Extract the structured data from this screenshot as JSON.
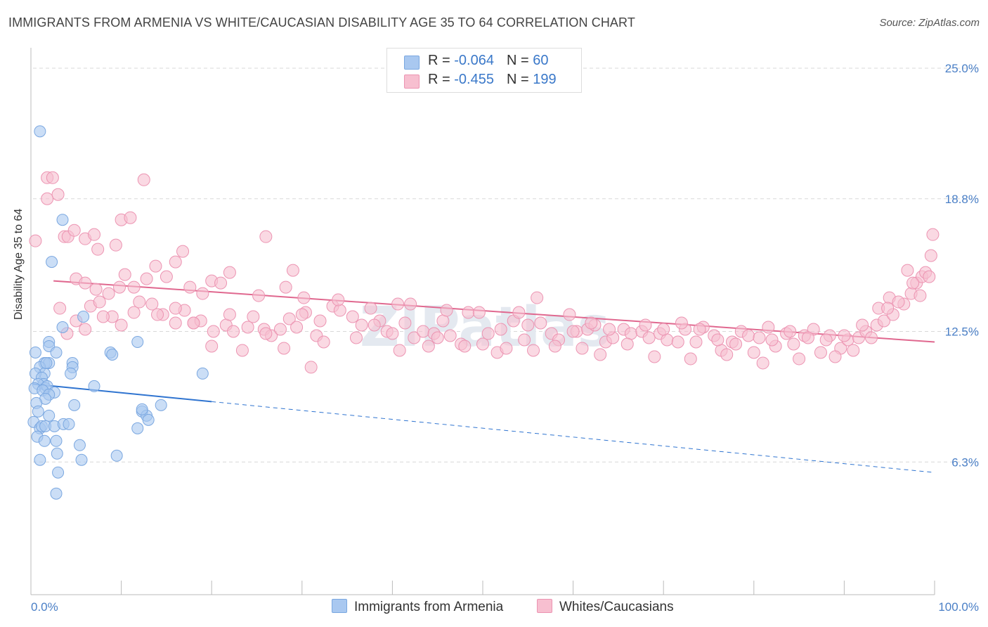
{
  "title": "IMMIGRANTS FROM ARMENIA VS WHITE/CAUCASIAN DISABILITY AGE 35 TO 64 CORRELATION CHART",
  "source": "Source: ZipAtlas.com",
  "watermark": "ZIPatlas",
  "colors": {
    "blue_fill": "#a9c8f0",
    "blue_stroke": "#7aa7e0",
    "blue_line": "#2f74d0",
    "pink_fill": "#f7bfd0",
    "pink_stroke": "#ec94b2",
    "pink_line": "#e0688f",
    "axis_text": "#4a7fc6",
    "grid": "#d8d8d8"
  },
  "legend": {
    "rows": [
      {
        "r_label": "R = ",
        "r_value": "-0.064",
        "n_label": "N = ",
        "n_value": " 60"
      },
      {
        "r_label": "R = ",
        "r_value": "-0.455",
        "n_label": "N = ",
        "n_value": "199"
      }
    ]
  },
  "bottom_legend": {
    "series1": "Immigrants from Armenia",
    "series2": "Whites/Caucasians"
  },
  "chart_data": {
    "type": "scatter",
    "ylabel": "Disability Age 35 to 64",
    "xlim": [
      0,
      100
    ],
    "ylim": [
      0,
      26.2
    ],
    "x_tick_labels": [
      "0.0%",
      "100.0%"
    ],
    "y_ticks": [
      6.3,
      12.5,
      18.8,
      25.0
    ],
    "y_tick_labels": [
      "6.3%",
      "12.5%",
      "18.8%",
      "25.0%"
    ],
    "grid": true,
    "series": [
      {
        "name": "Immigrants from Armenia",
        "trend": {
          "x0": 0.2,
          "y0": 10.0,
          "x1": 100.0,
          "y1": 5.8,
          "solid_until": 20.0
        },
        "points": [
          [
            1.0,
            22.0
          ],
          [
            3.5,
            17.8
          ],
          [
            2.3,
            15.8
          ],
          [
            3.5,
            12.7
          ],
          [
            5.8,
            13.2
          ],
          [
            11.8,
            12.0
          ],
          [
            0.5,
            11.5
          ],
          [
            2.0,
            12.0
          ],
          [
            2.0,
            11.8
          ],
          [
            2.8,
            11.5
          ],
          [
            1.5,
            11.0
          ],
          [
            2.0,
            11.0
          ],
          [
            4.6,
            11.0
          ],
          [
            4.6,
            10.8
          ],
          [
            8.8,
            11.5
          ],
          [
            9.0,
            11.4
          ],
          [
            1.0,
            10.8
          ],
          [
            1.5,
            10.5
          ],
          [
            0.5,
            10.5
          ],
          [
            1.2,
            10.3
          ],
          [
            1.4,
            10.0
          ],
          [
            0.8,
            10.0
          ],
          [
            1.6,
            9.8
          ],
          [
            1.8,
            9.9
          ],
          [
            0.4,
            9.8
          ],
          [
            2.6,
            9.6
          ],
          [
            1.3,
            9.7
          ],
          [
            2.0,
            9.5
          ],
          [
            1.6,
            9.3
          ],
          [
            4.4,
            10.5
          ],
          [
            7.0,
            9.9
          ],
          [
            19.0,
            10.5
          ],
          [
            0.6,
            9.1
          ],
          [
            4.8,
            9.0
          ],
          [
            0.8,
            8.7
          ],
          [
            2.0,
            8.5
          ],
          [
            12.3,
            8.7
          ],
          [
            12.8,
            8.5
          ],
          [
            14.4,
            9.0
          ],
          [
            0.3,
            8.2
          ],
          [
            1.0,
            7.9
          ],
          [
            1.2,
            8.0
          ],
          [
            1.6,
            8.0
          ],
          [
            2.6,
            8.0
          ],
          [
            3.6,
            8.1
          ],
          [
            4.2,
            8.1
          ],
          [
            11.8,
            7.9
          ],
          [
            13.0,
            8.3
          ],
          [
            0.7,
            7.5
          ],
          [
            1.5,
            7.3
          ],
          [
            2.8,
            7.3
          ],
          [
            5.4,
            7.1
          ],
          [
            2.9,
            6.7
          ],
          [
            9.5,
            6.6
          ],
          [
            1.0,
            6.4
          ],
          [
            5.6,
            6.4
          ],
          [
            3.0,
            5.8
          ],
          [
            2.8,
            4.8
          ],
          [
            12.3,
            8.8
          ],
          [
            1.7,
            11.0
          ]
        ]
      },
      {
        "name": "Whites/Caucasians",
        "trend": {
          "x0": 2.5,
          "y0": 14.9,
          "x1": 100.0,
          "y1": 12.0
        },
        "points": [
          [
            1.8,
            19.8
          ],
          [
            1.8,
            18.8
          ],
          [
            2.4,
            19.8
          ],
          [
            3.0,
            19.0
          ],
          [
            12.5,
            19.7
          ],
          [
            0.5,
            16.8
          ],
          [
            3.7,
            17.0
          ],
          [
            4.1,
            17.0
          ],
          [
            4.8,
            17.3
          ],
          [
            6.0,
            16.9
          ],
          [
            7.0,
            17.1
          ],
          [
            7.4,
            16.4
          ],
          [
            9.4,
            16.6
          ],
          [
            10.0,
            17.8
          ],
          [
            11.0,
            17.9
          ],
          [
            5.0,
            15.0
          ],
          [
            6.0,
            14.8
          ],
          [
            7.2,
            14.5
          ],
          [
            8.6,
            14.3
          ],
          [
            9.8,
            14.6
          ],
          [
            10.4,
            15.2
          ],
          [
            11.4,
            14.6
          ],
          [
            12.8,
            15.0
          ],
          [
            13.8,
            15.6
          ],
          [
            15.0,
            15.1
          ],
          [
            16.0,
            15.8
          ],
          [
            16.8,
            16.3
          ],
          [
            17.6,
            14.6
          ],
          [
            19.0,
            14.3
          ],
          [
            20.0,
            14.9
          ],
          [
            21.0,
            14.8
          ],
          [
            22.0,
            15.3
          ],
          [
            25.2,
            14.2
          ],
          [
            26.0,
            17.0
          ],
          [
            28.2,
            14.6
          ],
          [
            29.0,
            15.4
          ],
          [
            30.2,
            14.1
          ],
          [
            6.6,
            13.7
          ],
          [
            9.0,
            13.2
          ],
          [
            11.4,
            13.4
          ],
          [
            13.4,
            13.8
          ],
          [
            14.6,
            13.3
          ],
          [
            16.0,
            12.9
          ],
          [
            17.0,
            13.5
          ],
          [
            18.0,
            12.9
          ],
          [
            18.8,
            13.0
          ],
          [
            20.2,
            12.5
          ],
          [
            21.6,
            12.8
          ],
          [
            22.4,
            12.5
          ],
          [
            23.4,
            11.6
          ],
          [
            24.6,
            13.2
          ],
          [
            25.8,
            12.6
          ],
          [
            26.6,
            12.3
          ],
          [
            27.6,
            12.6
          ],
          [
            28.6,
            13.1
          ],
          [
            29.4,
            12.7
          ],
          [
            30.4,
            13.4
          ],
          [
            31.6,
            12.3
          ],
          [
            32.4,
            12.0
          ],
          [
            33.4,
            13.7
          ],
          [
            34.2,
            13.5
          ],
          [
            35.6,
            13.2
          ],
          [
            36.6,
            12.8
          ],
          [
            37.6,
            13.6
          ],
          [
            38.6,
            13.0
          ],
          [
            39.4,
            12.5
          ],
          [
            40.6,
            13.8
          ],
          [
            41.4,
            12.9
          ],
          [
            42.4,
            12.2
          ],
          [
            43.4,
            12.5
          ],
          [
            44.6,
            12.4
          ],
          [
            45.6,
            13.0
          ],
          [
            46.4,
            12.3
          ],
          [
            47.6,
            11.9
          ],
          [
            48.4,
            13.4
          ],
          [
            49.6,
            13.4
          ],
          [
            50.6,
            12.4
          ],
          [
            51.6,
            11.5
          ],
          [
            52.6,
            11.7
          ],
          [
            53.4,
            13.0
          ],
          [
            54.6,
            12.1
          ],
          [
            55.6,
            11.6
          ],
          [
            56.4,
            12.9
          ],
          [
            57.6,
            12.4
          ],
          [
            58.4,
            12.1
          ],
          [
            59.6,
            13.3
          ],
          [
            60.4,
            12.5
          ],
          [
            61.6,
            12.6
          ],
          [
            62.4,
            12.8
          ],
          [
            63.6,
            12.0
          ],
          [
            64.4,
            12.2
          ],
          [
            65.6,
            12.6
          ],
          [
            66.4,
            12.4
          ],
          [
            67.6,
            12.5
          ],
          [
            68.4,
            12.2
          ],
          [
            69.6,
            12.4
          ],
          [
            70.4,
            12.1
          ],
          [
            71.6,
            12.0
          ],
          [
            72.4,
            12.6
          ],
          [
            73.6,
            12.0
          ],
          [
            74.4,
            12.7
          ],
          [
            75.6,
            12.3
          ],
          [
            76.4,
            11.6
          ],
          [
            77.6,
            12.0
          ],
          [
            78.6,
            12.5
          ],
          [
            79.4,
            12.3
          ],
          [
            80.6,
            12.2
          ],
          [
            81.6,
            12.7
          ],
          [
            82.4,
            11.8
          ],
          [
            83.6,
            12.4
          ],
          [
            84.4,
            11.9
          ],
          [
            85.6,
            12.3
          ],
          [
            86.6,
            12.6
          ],
          [
            87.4,
            11.5
          ],
          [
            88.4,
            12.3
          ],
          [
            89.6,
            11.7
          ],
          [
            90.4,
            12.1
          ],
          [
            91.6,
            12.2
          ],
          [
            92.4,
            12.5
          ],
          [
            93.6,
            12.8
          ],
          [
            94.4,
            13.0
          ],
          [
            95.4,
            13.3
          ],
          [
            96.6,
            13.8
          ],
          [
            97.4,
            14.3
          ],
          [
            98.0,
            14.8
          ],
          [
            98.6,
            15.1
          ],
          [
            99.0,
            15.3
          ],
          [
            99.6,
            16.1
          ],
          [
            99.8,
            17.1
          ],
          [
            97.0,
            15.4
          ],
          [
            95.0,
            14.1
          ],
          [
            93.8,
            13.6
          ],
          [
            92.0,
            12.8
          ],
          [
            90.0,
            12.3
          ],
          [
            88.0,
            12.1
          ],
          [
            86.0,
            12.2
          ],
          [
            84.0,
            12.5
          ],
          [
            82.0,
            12.1
          ],
          [
            80.0,
            11.5
          ],
          [
            78.0,
            11.9
          ],
          [
            76.0,
            12.1
          ],
          [
            74.0,
            12.6
          ],
          [
            72.0,
            12.9
          ],
          [
            70.0,
            12.6
          ],
          [
            68.0,
            12.8
          ],
          [
            66.0,
            11.9
          ],
          [
            64.0,
            12.6
          ],
          [
            62.0,
            12.9
          ],
          [
            60.0,
            12.5
          ],
          [
            58.0,
            11.8
          ],
          [
            56.0,
            14.1
          ],
          [
            54.0,
            13.4
          ],
          [
            52.0,
            12.6
          ],
          [
            50.0,
            11.9
          ],
          [
            48.0,
            11.8
          ],
          [
            46.0,
            13.5
          ],
          [
            44.0,
            11.8
          ],
          [
            42.0,
            13.8
          ],
          [
            40.0,
            12.4
          ],
          [
            38.0,
            12.8
          ],
          [
            36.0,
            12.2
          ],
          [
            34.0,
            14.0
          ],
          [
            32.0,
            13.0
          ],
          [
            30.0,
            13.3
          ],
          [
            28.0,
            11.7
          ],
          [
            26.0,
            12.4
          ],
          [
            24.0,
            12.7
          ],
          [
            22.0,
            13.3
          ],
          [
            20.0,
            11.8
          ],
          [
            18.0,
            12.9
          ],
          [
            16.0,
            13.6
          ],
          [
            14.0,
            13.3
          ],
          [
            12.0,
            13.9
          ],
          [
            10.0,
            12.8
          ],
          [
            8.0,
            13.2
          ],
          [
            6.0,
            12.6
          ],
          [
            5.0,
            13.0
          ],
          [
            4.0,
            12.4
          ],
          [
            3.2,
            13.6
          ],
          [
            7.6,
            13.9
          ],
          [
            31.0,
            10.8
          ],
          [
            40.8,
            11.6
          ],
          [
            45.0,
            12.2
          ],
          [
            55.0,
            12.8
          ],
          [
            63.0,
            11.4
          ],
          [
            69.0,
            11.3
          ],
          [
            73.0,
            11.2
          ],
          [
            77.0,
            11.4
          ],
          [
            81.0,
            11.0
          ],
          [
            85.0,
            11.2
          ],
          [
            89.0,
            11.3
          ],
          [
            91.0,
            11.6
          ],
          [
            93.0,
            12.2
          ],
          [
            96.0,
            13.9
          ],
          [
            97.6,
            14.8
          ],
          [
            99.4,
            15.1
          ],
          [
            98.4,
            14.2
          ],
          [
            94.8,
            13.6
          ],
          [
            61.0,
            11.7
          ]
        ]
      }
    ]
  }
}
